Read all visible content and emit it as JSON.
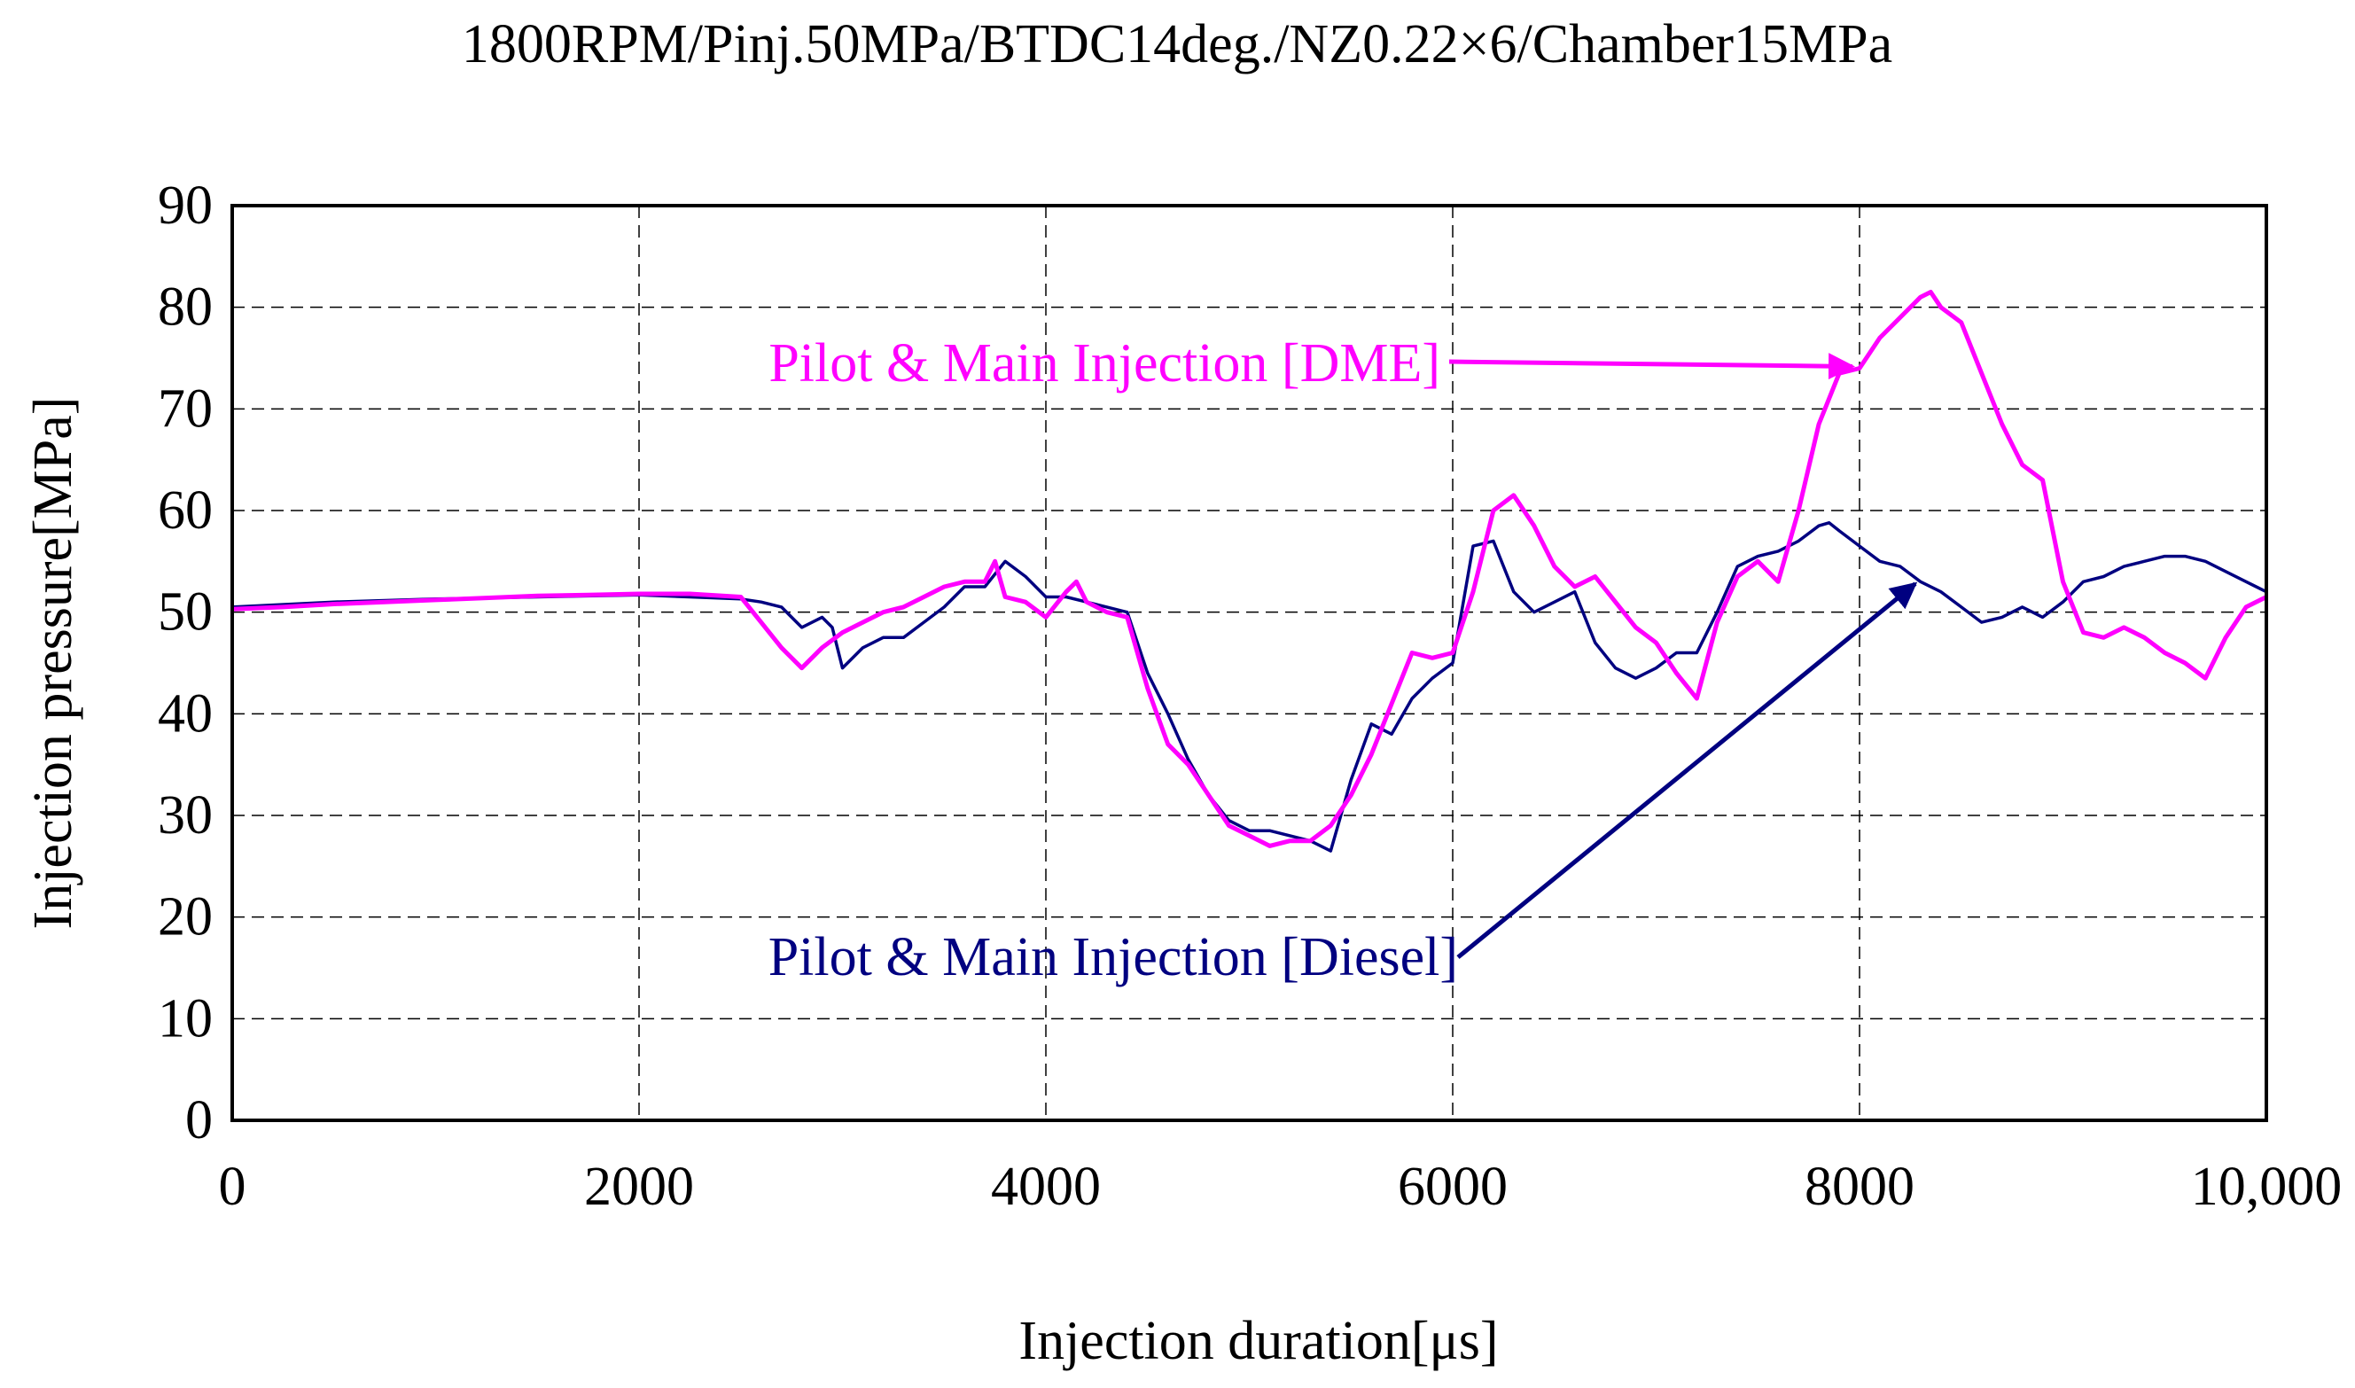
{
  "chart_data": {
    "type": "line",
    "title": "1800RPM/Pinj.50MPa/BTDC14deg./NZ0.22×6/Chamber15MPa",
    "xlabel": "Injection duration[μs]",
    "ylabel": "Injection pressure[MPa]",
    "xlim": [
      0,
      10000
    ],
    "ylim": [
      0,
      90
    ],
    "grid": true,
    "x_ticks": [
      "0",
      "2000",
      "4000",
      "6000",
      "8000",
      "10,000"
    ],
    "y_ticks": [
      "0",
      "10",
      "20",
      "30",
      "40",
      "50",
      "60",
      "70",
      "80",
      "90"
    ],
    "series": [
      {
        "name": "Pilot & Main Injection [DME]",
        "color": "#ff00ff",
        "x": [
          0,
          250,
          500,
          750,
          1000,
          1250,
          1500,
          1750,
          2000,
          2250,
          2500,
          2600,
          2700,
          2800,
          2900,
          3000,
          3100,
          3200,
          3300,
          3400,
          3500,
          3600,
          3700,
          3750,
          3800,
          3900,
          4000,
          4100,
          4150,
          4200,
          4300,
          4400,
          4500,
          4600,
          4700,
          4800,
          4900,
          5000,
          5100,
          5200,
          5300,
          5400,
          5500,
          5600,
          5700,
          5800,
          5900,
          6000,
          6100,
          6200,
          6300,
          6400,
          6500,
          6600,
          6700,
          6800,
          6900,
          7000,
          7100,
          7200,
          7300,
          7400,
          7500,
          7600,
          7700,
          7800,
          7900,
          8000,
          8100,
          8200,
          8300,
          8350,
          8400,
          8500,
          8600,
          8700,
          8800,
          8900,
          9000,
          9100,
          9200,
          9300,
          9400,
          9500,
          9600,
          9700,
          9800,
          9900,
          10000
        ],
        "y": [
          50.3,
          50.5,
          50.8,
          51.0,
          51.2,
          51.4,
          51.6,
          51.7,
          51.8,
          51.8,
          51.5,
          49,
          46.5,
          44.5,
          46.5,
          48,
          49,
          50,
          50.5,
          51.5,
          52.5,
          53,
          53,
          55,
          51.5,
          51,
          49.5,
          52,
          53,
          51,
          50,
          49.5,
          42.5,
          37,
          35,
          32,
          29,
          28,
          27,
          27.5,
          27.5,
          29,
          32,
          36,
          41,
          46,
          45.5,
          46,
          52,
          60,
          61.5,
          58.5,
          54.5,
          52.5,
          53.5,
          51,
          48.5,
          47,
          44,
          41.5,
          49,
          53.5,
          55,
          53,
          60,
          68.5,
          73.5,
          74,
          77,
          79,
          81,
          81.5,
          80,
          78.5,
          73.5,
          68.5,
          64.5,
          63,
          53,
          48,
          47.5,
          48.5,
          47.5,
          46,
          45,
          43.5,
          47.5,
          50.5,
          51.5
        ]
      },
      {
        "name": "Pilot & Main Injection [Diesel]",
        "color": "#000080",
        "x": [
          0,
          500,
          1000,
          1500,
          2000,
          2500,
          2600,
          2700,
          2800,
          2900,
          2950,
          3000,
          3100,
          3200,
          3300,
          3400,
          3500,
          3600,
          3700,
          3800,
          3900,
          4000,
          4100,
          4200,
          4300,
          4400,
          4500,
          4600,
          4700,
          4800,
          4900,
          5000,
          5100,
          5200,
          5300,
          5400,
          5500,
          5600,
          5700,
          5800,
          5900,
          6000,
          6100,
          6200,
          6300,
          6400,
          6500,
          6600,
          6700,
          6800,
          6900,
          7000,
          7100,
          7200,
          7300,
          7400,
          7500,
          7600,
          7700,
          7800,
          7850,
          7900,
          8000,
          8100,
          8200,
          8300,
          8400,
          8500,
          8600,
          8700,
          8800,
          8900,
          9000,
          9100,
          9200,
          9300,
          9400,
          9500,
          9600,
          9700,
          9800,
          9900,
          10000
        ],
        "y": [
          50.5,
          51,
          51.3,
          51.5,
          51.7,
          51.3,
          51,
          50.5,
          48.5,
          49.5,
          48.5,
          44.5,
          46.5,
          47.5,
          47.5,
          49,
          50.5,
          52.5,
          52.5,
          55,
          53.5,
          51.5,
          51.5,
          51,
          50.5,
          50,
          44,
          40,
          35.5,
          32,
          29.5,
          28.5,
          28.5,
          28,
          27.5,
          26.5,
          33.5,
          39,
          38,
          41.5,
          43.5,
          45,
          56.5,
          57,
          52,
          50,
          51,
          52,
          47,
          44.5,
          43.5,
          44.5,
          46,
          46,
          50,
          54.5,
          55.5,
          56,
          57,
          58.5,
          58.8,
          58,
          56.5,
          55,
          54.5,
          53,
          52,
          50.5,
          49,
          49.5,
          50.5,
          49.5,
          51,
          53,
          53.5,
          54.5,
          55,
          55.5,
          55.5,
          55,
          54,
          53,
          52
        ]
      }
    ],
    "annotations": [
      {
        "text": "Pilot & Main Injection [DME]",
        "series": 0,
        "arrow_to": [
          8000,
          74
        ]
      },
      {
        "text": "Pilot & Main Injection [Diesel]",
        "series": 1,
        "arrow_to": [
          8300,
          53.5
        ]
      }
    ]
  }
}
